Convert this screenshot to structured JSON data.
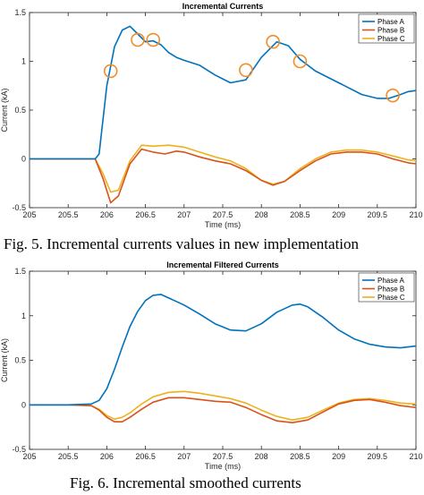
{
  "chart_data": [
    {
      "type": "line",
      "title": "Incremental  Currents",
      "xlabel": "Time (ms)",
      "ylabel": "Current (kA)",
      "xlim": [
        205,
        210
      ],
      "ylim": [
        -0.5,
        1.5
      ],
      "xticks": [
        "205",
        "205.5",
        "206",
        "206.5",
        "207",
        "207.5",
        "208",
        "208.5",
        "209",
        "209.5",
        "210"
      ],
      "yticks": [
        "-0.5",
        "0",
        "0.5",
        "1",
        "1.5"
      ],
      "grid": false,
      "legend_position": "top-right",
      "series": [
        {
          "name": "Phase A",
          "color": "#0072BD",
          "x": [
            205,
            205.5,
            205.85,
            205.9,
            206,
            206.1,
            206.2,
            206.3,
            206.4,
            206.5,
            206.6,
            206.7,
            206.8,
            206.9,
            207,
            207.2,
            207.4,
            207.6,
            207.8,
            208,
            208.2,
            208.35,
            208.5,
            208.7,
            208.9,
            209.1,
            209.3,
            209.5,
            209.65,
            209.8,
            209.9,
            210
          ],
          "y": [
            0,
            0,
            0,
            0.05,
            0.75,
            1.15,
            1.32,
            1.36,
            1.28,
            1.2,
            1.21,
            1.17,
            1.09,
            1.04,
            1.01,
            0.96,
            0.86,
            0.78,
            0.81,
            1.04,
            1.2,
            1.16,
            1.02,
            0.9,
            0.82,
            0.74,
            0.66,
            0.62,
            0.62,
            0.66,
            0.69,
            0.7
          ]
        },
        {
          "name": "Phase B",
          "color": "#D95319",
          "x": [
            205,
            205.5,
            205.85,
            205.95,
            206.05,
            206.15,
            206.3,
            206.45,
            206.6,
            206.75,
            206.9,
            207,
            207.2,
            207.4,
            207.6,
            207.8,
            208,
            208.15,
            208.3,
            208.5,
            208.7,
            208.9,
            209.1,
            209.3,
            209.5,
            209.7,
            209.9,
            210
          ],
          "y": [
            0,
            0,
            0,
            -0.2,
            -0.45,
            -0.38,
            -0.05,
            0.1,
            0.07,
            0.05,
            0.08,
            0.07,
            0.02,
            -0.02,
            -0.05,
            -0.12,
            -0.22,
            -0.27,
            -0.23,
            -0.12,
            -0.02,
            0.05,
            0.07,
            0.07,
            0.05,
            0,
            -0.04,
            -0.05
          ]
        },
        {
          "name": "Phase C",
          "color": "#EDB120",
          "x": [
            205,
            205.5,
            205.85,
            205.95,
            206.05,
            206.15,
            206.3,
            206.45,
            206.6,
            206.8,
            207,
            207.2,
            207.4,
            207.6,
            207.8,
            208,
            208.15,
            208.3,
            208.5,
            208.7,
            208.9,
            209.1,
            209.3,
            209.5,
            209.7,
            209.9,
            210
          ],
          "y": [
            0,
            0,
            0,
            -0.15,
            -0.34,
            -0.32,
            -0.02,
            0.14,
            0.13,
            0.14,
            0.12,
            0.07,
            0.02,
            -0.02,
            -0.1,
            -0.22,
            -0.26,
            -0.23,
            -0.1,
            0,
            0.07,
            0.09,
            0.09,
            0.07,
            0.03,
            -0.01,
            -0.02
          ]
        }
      ],
      "markers": {
        "shape": "circle",
        "color": "#F28C28",
        "x": [
          206.05,
          206.4,
          206.6,
          207.8,
          208.15,
          208.5,
          209.7
        ],
        "y": [
          0.9,
          1.22,
          1.22,
          0.91,
          1.2,
          1.0,
          0.65
        ]
      }
    },
    {
      "type": "line",
      "title": "Incremental Filtered Currents",
      "xlabel": "Time (ms)",
      "ylabel": "Current (kA)",
      "xlim": [
        205,
        210
      ],
      "ylim": [
        -0.5,
        1.5
      ],
      "xticks": [
        "205",
        "205.5",
        "206",
        "206.5",
        "207",
        "207.5",
        "208",
        "208.5",
        "209",
        "209.5",
        "210"
      ],
      "yticks": [
        "-0.5",
        "0",
        "0.5",
        "1",
        "1.5"
      ],
      "grid": false,
      "legend_position": "top-right",
      "series": [
        {
          "name": "Phase A",
          "color": "#0072BD",
          "x": [
            205,
            205.5,
            205.8,
            205.9,
            206,
            206.1,
            206.2,
            206.3,
            206.4,
            206.5,
            206.6,
            206.7,
            206.8,
            206.9,
            207,
            207.2,
            207.4,
            207.6,
            207.8,
            208,
            208.2,
            208.4,
            208.5,
            208.6,
            208.8,
            209,
            209.2,
            209.4,
            209.6,
            209.8,
            210
          ],
          "y": [
            0,
            0,
            0.01,
            0.05,
            0.18,
            0.4,
            0.65,
            0.88,
            1.05,
            1.17,
            1.23,
            1.24,
            1.2,
            1.16,
            1.12,
            1.02,
            0.91,
            0.84,
            0.83,
            0.91,
            1.04,
            1.12,
            1.13,
            1.1,
            0.98,
            0.84,
            0.74,
            0.68,
            0.65,
            0.64,
            0.66
          ]
        },
        {
          "name": "Phase B",
          "color": "#D95319",
          "x": [
            205,
            205.5,
            205.8,
            205.9,
            206,
            206.1,
            206.2,
            206.3,
            206.45,
            206.6,
            206.8,
            207,
            207.2,
            207.4,
            207.6,
            207.8,
            208,
            208.2,
            208.4,
            208.6,
            208.8,
            209,
            209.2,
            209.4,
            209.6,
            209.8,
            210
          ],
          "y": [
            0,
            0,
            -0.01,
            -0.06,
            -0.14,
            -0.19,
            -0.19,
            -0.14,
            -0.05,
            0.03,
            0.08,
            0.08,
            0.06,
            0.04,
            0.03,
            -0.03,
            -0.11,
            -0.18,
            -0.2,
            -0.17,
            -0.08,
            0.01,
            0.05,
            0.06,
            0.03,
            -0.01,
            -0.03
          ]
        },
        {
          "name": "Phase C",
          "color": "#EDB120",
          "x": [
            205,
            205.5,
            205.8,
            205.9,
            206,
            206.1,
            206.2,
            206.3,
            206.45,
            206.6,
            206.8,
            207,
            207.2,
            207.4,
            207.6,
            207.8,
            208,
            208.2,
            208.4,
            208.6,
            208.8,
            209,
            209.2,
            209.4,
            209.6,
            209.8,
            210
          ],
          "y": [
            0,
            0,
            -0.01,
            -0.05,
            -0.12,
            -0.16,
            -0.14,
            -0.09,
            0.01,
            0.09,
            0.14,
            0.15,
            0.13,
            0.1,
            0.07,
            0.02,
            -0.06,
            -0.13,
            -0.17,
            -0.14,
            -0.06,
            0.02,
            0.06,
            0.07,
            0.05,
            0.02,
            0.01
          ]
        }
      ]
    }
  ],
  "captions": {
    "fig5": "Fig. 5. Incremental currents values in new implementation",
    "fig6": "Fig. 6. Incremental smoothed currents"
  }
}
